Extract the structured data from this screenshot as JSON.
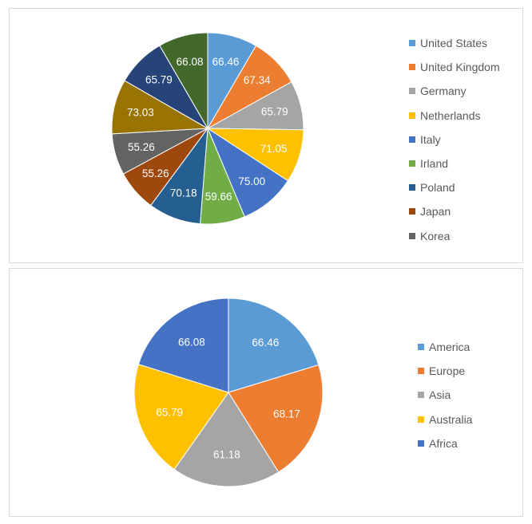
{
  "chart_data": [
    {
      "type": "pie",
      "categories": [
        "United States",
        "United Kingdom",
        "Germany",
        "Netherlands",
        "Italy",
        "Irland",
        "Poland",
        "Japan",
        "Korea",
        "",
        "",
        ""
      ],
      "values": [
        66.46,
        67.34,
        65.79,
        71.05,
        75.0,
        59.66,
        70.18,
        55.26,
        55.26,
        73.03,
        65.79,
        66.08
      ],
      "labels": [
        "66.46",
        "67.34",
        "65.79",
        "71.05",
        "75.00",
        "59.66",
        "70.18",
        "55.26",
        "55.26",
        "73.03",
        "65.79",
        "66.08"
      ],
      "colors": [
        "#5b9bd5",
        "#ed7d31",
        "#a5a5a5",
        "#ffc000",
        "#4472c4",
        "#70ad47",
        "#255e91",
        "#9e480e",
        "#636363",
        "#997300",
        "#264478",
        "#43682b"
      ],
      "legend": [
        "United States",
        "United Kingdom",
        "Germany",
        "Netherlands",
        "Italy",
        "Irland",
        "Poland",
        "Japan",
        "Korea"
      ],
      "legend_position": "right"
    },
    {
      "type": "pie",
      "categories": [
        "America",
        "Europe",
        "Asia",
        "Australia",
        "Africa"
      ],
      "values": [
        66.46,
        68.17,
        61.18,
        65.79,
        66.08
      ],
      "labels": [
        "66.46",
        "68.17",
        "61.18",
        "65.79",
        "66.08"
      ],
      "colors": [
        "#5b9bd5",
        "#ed7d31",
        "#a5a5a5",
        "#ffc000",
        "#4472c4"
      ],
      "legend": [
        "America",
        "Europe",
        "Asia",
        "Australia",
        "Africa"
      ],
      "legend_position": "right"
    }
  ]
}
